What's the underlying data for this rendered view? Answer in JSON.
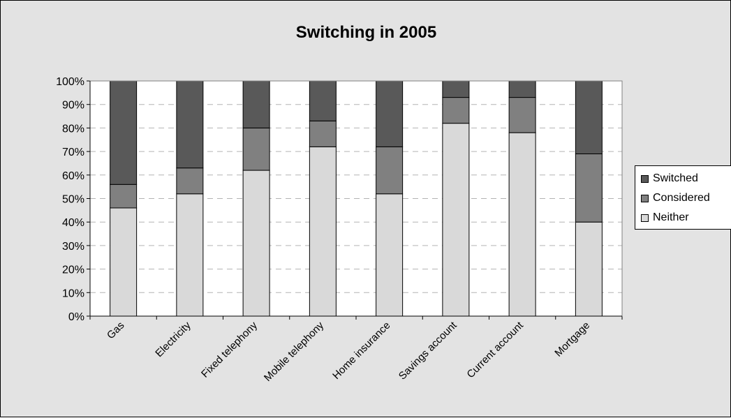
{
  "chart_data": {
    "type": "bar",
    "stacked": true,
    "title": "Switching in 2005",
    "xlabel": "",
    "ylabel": "",
    "ylim": [
      0,
      100
    ],
    "yticks": [
      "0%",
      "10%",
      "20%",
      "30%",
      "40%",
      "50%",
      "60%",
      "70%",
      "80%",
      "90%",
      "100%"
    ],
    "grid": true,
    "legend_position": "right",
    "categories": [
      "Gas",
      "Electricity",
      "Fixed telephony",
      "Mobile telephony",
      "Home insurance",
      "Savings account",
      "Current account",
      "Mortgage"
    ],
    "series": [
      {
        "name": "Neither",
        "color": "#d9d9d9",
        "values": [
          46,
          52,
          62,
          72,
          52,
          82,
          78,
          40
        ]
      },
      {
        "name": "Considered",
        "color": "#808080",
        "values": [
          10,
          11,
          18,
          11,
          20,
          11,
          15,
          29
        ]
      },
      {
        "name": "Switched",
        "color": "#595959",
        "values": [
          44,
          37,
          20,
          17,
          28,
          7,
          7,
          31
        ]
      }
    ],
    "legend": [
      "Switched",
      "Considered",
      "Neither"
    ]
  }
}
